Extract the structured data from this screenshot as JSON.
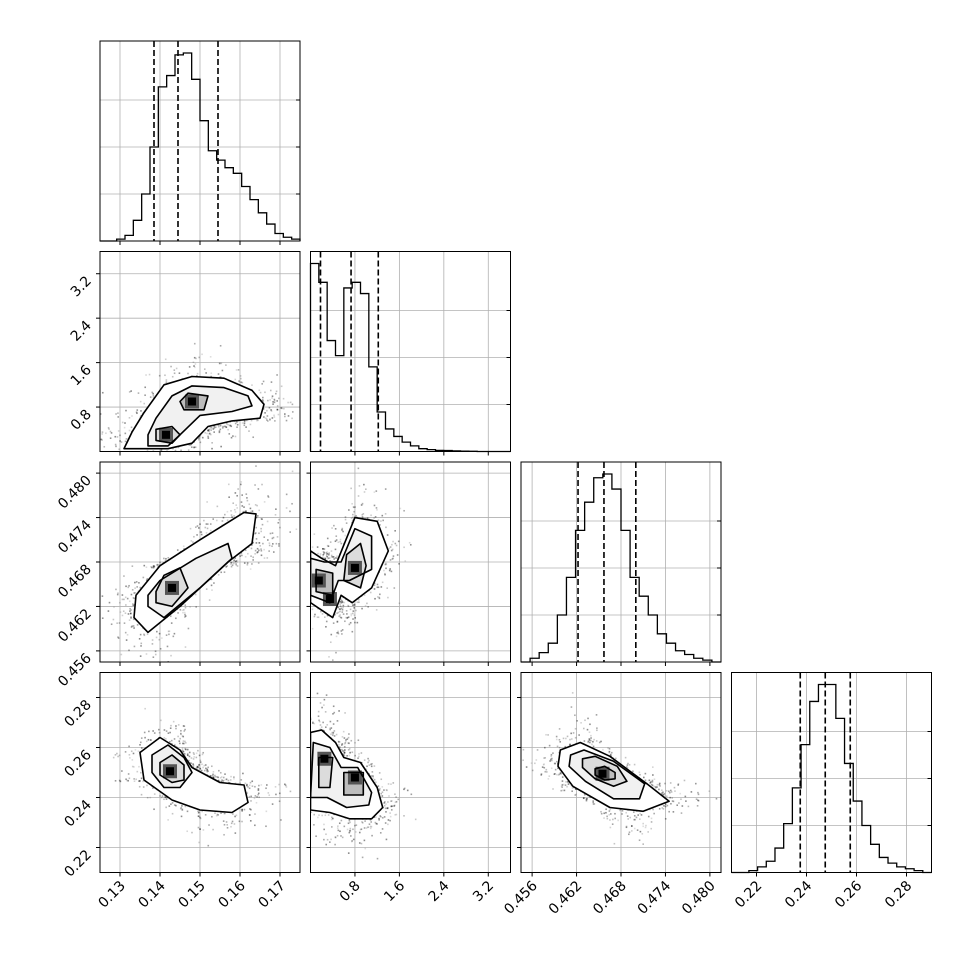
{
  "chart_data": {
    "type": "corner",
    "xlabels": [
      "",
      "",
      "",
      ""
    ],
    "ylabels": [
      "",
      "",
      "",
      ""
    ],
    "grid": true,
    "params": [
      {
        "range": [
          0.125,
          0.175
        ],
        "ticks": [
          0.13,
          0.14,
          0.15,
          0.16,
          0.17
        ],
        "tick_labels": [
          "0.13",
          "0.14",
          "0.15",
          "0.16",
          "0.17"
        ],
        "quantiles": [
          0.1385,
          0.1445,
          0.1545
        ],
        "hist": [
          0.0,
          0.0,
          0.01,
          0.03,
          0.11,
          0.25,
          0.5,
          0.82,
          0.88,
          0.99,
          1.0,
          0.86,
          0.64,
          0.48,
          0.43,
          0.39,
          0.36,
          0.29,
          0.22,
          0.15,
          0.09,
          0.04,
          0.02,
          0.01
        ]
      },
      {
        "range": [
          0.0,
          3.6
        ],
        "ticks": [
          0.8,
          1.6,
          2.4,
          3.2
        ],
        "tick_labels": [
          "0.8",
          "1.6",
          "2.4",
          "3.2"
        ],
        "quantiles": [
          0.18,
          0.73,
          1.22
        ],
        "hist": [
          1.0,
          0.9,
          0.59,
          0.51,
          0.87,
          0.9,
          0.84,
          0.45,
          0.21,
          0.12,
          0.08,
          0.05,
          0.03,
          0.015,
          0.01,
          0.006,
          0.005,
          0.003,
          0.002,
          0.001,
          0.0,
          0.0,
          0.0,
          0.0
        ]
      },
      {
        "range": [
          0.4545,
          0.4815
        ],
        "ticks": [
          0.456,
          0.462,
          0.468,
          0.474,
          0.48
        ],
        "tick_labels": [
          "0.456",
          "0.462",
          "0.468",
          "0.474",
          "0.480"
        ],
        "quantiles": [
          0.4622,
          0.4657,
          0.47
        ],
        "hist": [
          0.0,
          0.02,
          0.05,
          0.1,
          0.25,
          0.45,
          0.7,
          0.85,
          0.98,
          1.0,
          0.92,
          0.7,
          0.45,
          0.35,
          0.25,
          0.15,
          0.1,
          0.06,
          0.04,
          0.02,
          0.01,
          0.0
        ]
      },
      {
        "range": [
          0.21,
          0.29
        ],
        "ticks": [
          0.22,
          0.24,
          0.26,
          0.28
        ],
        "tick_labels": [
          "0.22",
          "0.24",
          "0.26",
          "0.28"
        ],
        "quantiles": [
          0.2375,
          0.2475,
          0.2575
        ],
        "hist": [
          0.0,
          0.0,
          0.01,
          0.03,
          0.06,
          0.13,
          0.26,
          0.45,
          0.68,
          0.91,
          1.0,
          1.0,
          0.82,
          0.58,
          0.38,
          0.25,
          0.15,
          0.08,
          0.05,
          0.03,
          0.02,
          0.01,
          0.0
        ]
      }
    ],
    "pairs": [
      {
        "row": 1,
        "col": 0,
        "peaks": [
          [
            0.1415,
            0.3
          ],
          [
            0.148,
            0.9
          ]
        ],
        "contours": [
          [
            [
              0.131,
              0.05
            ],
            [
              0.142,
              0.05
            ],
            [
              0.148,
              0.15
            ],
            [
              0.152,
              0.45
            ],
            [
              0.158,
              0.55
            ],
            [
              0.165,
              0.6
            ],
            [
              0.166,
              0.85
            ],
            [
              0.163,
              1.1
            ],
            [
              0.156,
              1.32
            ],
            [
              0.148,
              1.35
            ],
            [
              0.141,
              1.2
            ],
            [
              0.136,
              0.7
            ],
            [
              0.133,
              0.35
            ]
          ],
          [
            [
              0.137,
              0.1
            ],
            [
              0.142,
              0.1
            ],
            [
              0.145,
              0.3
            ],
            [
              0.15,
              0.65
            ],
            [
              0.158,
              0.72
            ],
            [
              0.163,
              0.82
            ],
            [
              0.162,
              1.0
            ],
            [
              0.156,
              1.15
            ],
            [
              0.148,
              1.18
            ],
            [
              0.143,
              1.0
            ],
            [
              0.139,
              0.6
            ],
            [
              0.137,
              0.3
            ]
          ],
          [
            [
              0.139,
              0.2
            ],
            [
              0.143,
              0.15
            ],
            [
              0.145,
              0.3
            ],
            [
              0.143,
              0.45
            ],
            [
              0.139,
              0.4
            ]
          ],
          [
            [
              0.146,
              0.75
            ],
            [
              0.151,
              0.75
            ],
            [
              0.152,
              1.0
            ],
            [
              0.147,
              1.05
            ],
            [
              0.145,
              0.9
            ]
          ]
        ]
      },
      {
        "row": 2,
        "col": 0,
        "peaks": [
          [
            0.143,
            0.4645
          ]
        ],
        "contours": [
          [
            [
              0.1335,
              0.4605
            ],
            [
              0.137,
              0.4585
            ],
            [
              0.145,
              0.462
            ],
            [
              0.157,
              0.468
            ],
            [
              0.163,
              0.4705
            ],
            [
              0.164,
              0.4745
            ],
            [
              0.161,
              0.4747
            ],
            [
              0.15,
              0.471
            ],
            [
              0.14,
              0.4675
            ],
            [
              0.134,
              0.4635
            ]
          ],
          [
            [
              0.137,
              0.462
            ],
            [
              0.141,
              0.4605
            ],
            [
              0.15,
              0.4645
            ],
            [
              0.158,
              0.4685
            ],
            [
              0.157,
              0.4705
            ],
            [
              0.149,
              0.4685
            ],
            [
              0.14,
              0.4655
            ],
            [
              0.137,
              0.4635
            ]
          ],
          [
            [
              0.139,
              0.4625
            ],
            [
              0.143,
              0.462
            ],
            [
              0.147,
              0.4645
            ],
            [
              0.145,
              0.4672
            ],
            [
              0.141,
              0.4662
            ],
            [
              0.139,
              0.464
            ]
          ]
        ]
      },
      {
        "row": 3,
        "col": 0,
        "peaks": [
          [
            0.1425,
            0.2505
          ]
        ],
        "contours": [
          [
            [
              0.135,
              0.258
            ],
            [
              0.14,
              0.264
            ],
            [
              0.145,
              0.259
            ],
            [
              0.148,
              0.252
            ],
            [
              0.155,
              0.246
            ],
            [
              0.161,
              0.245
            ],
            [
              0.162,
              0.238
            ],
            [
              0.158,
              0.234
            ],
            [
              0.15,
              0.235
            ],
            [
              0.143,
              0.239
            ],
            [
              0.136,
              0.247
            ]
          ],
          [
            [
              0.138,
              0.257
            ],
            [
              0.142,
              0.261
            ],
            [
              0.146,
              0.256
            ],
            [
              0.148,
              0.25
            ],
            [
              0.145,
              0.244
            ],
            [
              0.141,
              0.244
            ],
            [
              0.138,
              0.25
            ]
          ],
          [
            [
              0.14,
              0.254
            ],
            [
              0.143,
              0.257
            ],
            [
              0.146,
              0.253
            ],
            [
              0.146,
              0.247
            ],
            [
              0.143,
              0.246
            ],
            [
              0.14,
              0.249
            ]
          ]
        ]
      },
      {
        "row": 2,
        "col": 1,
        "peaks": [
          [
            0.15,
            0.4655
          ],
          [
            0.35,
            0.463
          ],
          [
            0.8,
            0.4672
          ]
        ],
        "contours": [
          [
            [
              0.0,
              0.4625
            ],
            [
              0.4,
              0.4605
            ],
            [
              0.55,
              0.4635
            ],
            [
              0.75,
              0.4625
            ],
            [
              1.1,
              0.4645
            ],
            [
              1.4,
              0.4695
            ],
            [
              1.2,
              0.4735
            ],
            [
              0.8,
              0.474
            ],
            [
              0.45,
              0.4675
            ],
            [
              0.2,
              0.4685
            ],
            [
              0.0,
              0.4695
            ]
          ],
          [
            [
              0.0,
              0.4635
            ],
            [
              0.35,
              0.4625
            ],
            [
              0.5,
              0.4655
            ],
            [
              0.7,
              0.4655
            ],
            [
              1.1,
              0.467
            ],
            [
              1.1,
              0.4715
            ],
            [
              0.8,
              0.4725
            ],
            [
              0.55,
              0.468
            ],
            [
              0.25,
              0.468
            ],
            [
              0.0,
              0.4685
            ]
          ],
          [
            [
              0.6,
              0.4655
            ],
            [
              0.9,
              0.4645
            ],
            [
              1.0,
              0.4675
            ],
            [
              0.9,
              0.4705
            ],
            [
              0.65,
              0.469
            ]
          ],
          [
            [
              0.1,
              0.464
            ],
            [
              0.4,
              0.4635
            ],
            [
              0.4,
              0.4665
            ],
            [
              0.1,
              0.467
            ]
          ]
        ]
      },
      {
        "row": 3,
        "col": 1,
        "peaks": [
          [
            0.25,
            0.2555
          ],
          [
            0.8,
            0.248
          ]
        ],
        "contours": [
          [
            [
              0.0,
              0.235
            ],
            [
              0.35,
              0.234
            ],
            [
              0.7,
              0.2315
            ],
            [
              1.1,
              0.2315
            ],
            [
              1.3,
              0.236
            ],
            [
              1.2,
              0.244
            ],
            [
              0.9,
              0.254
            ],
            [
              0.6,
              0.256
            ],
            [
              0.45,
              0.262
            ],
            [
              0.2,
              0.267
            ],
            [
              0.0,
              0.266
            ]
          ],
          [
            [
              0.0,
              0.24
            ],
            [
              0.3,
              0.24
            ],
            [
              0.65,
              0.236
            ],
            [
              1.05,
              0.237
            ],
            [
              1.1,
              0.242
            ],
            [
              0.85,
              0.252
            ],
            [
              0.55,
              0.252
            ],
            [
              0.35,
              0.26
            ],
            [
              0.05,
              0.262
            ]
          ],
          [
            [
              0.15,
              0.244
            ],
            [
              0.35,
              0.244
            ],
            [
              0.4,
              0.256
            ],
            [
              0.15,
              0.256
            ]
          ],
          [
            [
              0.6,
              0.241
            ],
            [
              0.95,
              0.241
            ],
            [
              0.95,
              0.25
            ],
            [
              0.6,
              0.25
            ]
          ]
        ]
      },
      {
        "row": 3,
        "col": 2,
        "peaks": [
          [
            0.4655,
            0.2495
          ]
        ],
        "contours": [
          [
            [
              0.4598,
              0.259
            ],
            [
              0.4625,
              0.262
            ],
            [
              0.4665,
              0.2565
            ],
            [
              0.4715,
              0.2455
            ],
            [
              0.4745,
              0.2385
            ],
            [
              0.471,
              0.2345
            ],
            [
              0.4665,
              0.236
            ],
            [
              0.4615,
              0.2445
            ],
            [
              0.4595,
              0.2525
            ]
          ],
          [
            [
              0.4612,
              0.257
            ],
            [
              0.463,
              0.259
            ],
            [
              0.467,
              0.2545
            ],
            [
              0.4712,
              0.2455
            ],
            [
              0.4705,
              0.2395
            ],
            [
              0.467,
              0.2395
            ],
            [
              0.4632,
              0.2465
            ],
            [
              0.461,
              0.2525
            ]
          ],
          [
            [
              0.4628,
              0.2555
            ],
            [
              0.4645,
              0.2565
            ],
            [
              0.4675,
              0.2525
            ],
            [
              0.4688,
              0.2465
            ],
            [
              0.467,
              0.2445
            ],
            [
              0.4645,
              0.2475
            ],
            [
              0.4628,
              0.252
            ]
          ],
          [
            [
              0.4645,
              0.2515
            ],
            [
              0.4658,
              0.2525
            ],
            [
              0.4672,
              0.25
            ],
            [
              0.4672,
              0.2475
            ],
            [
              0.4658,
              0.247
            ],
            [
              0.4645,
              0.249
            ]
          ]
        ]
      }
    ]
  }
}
